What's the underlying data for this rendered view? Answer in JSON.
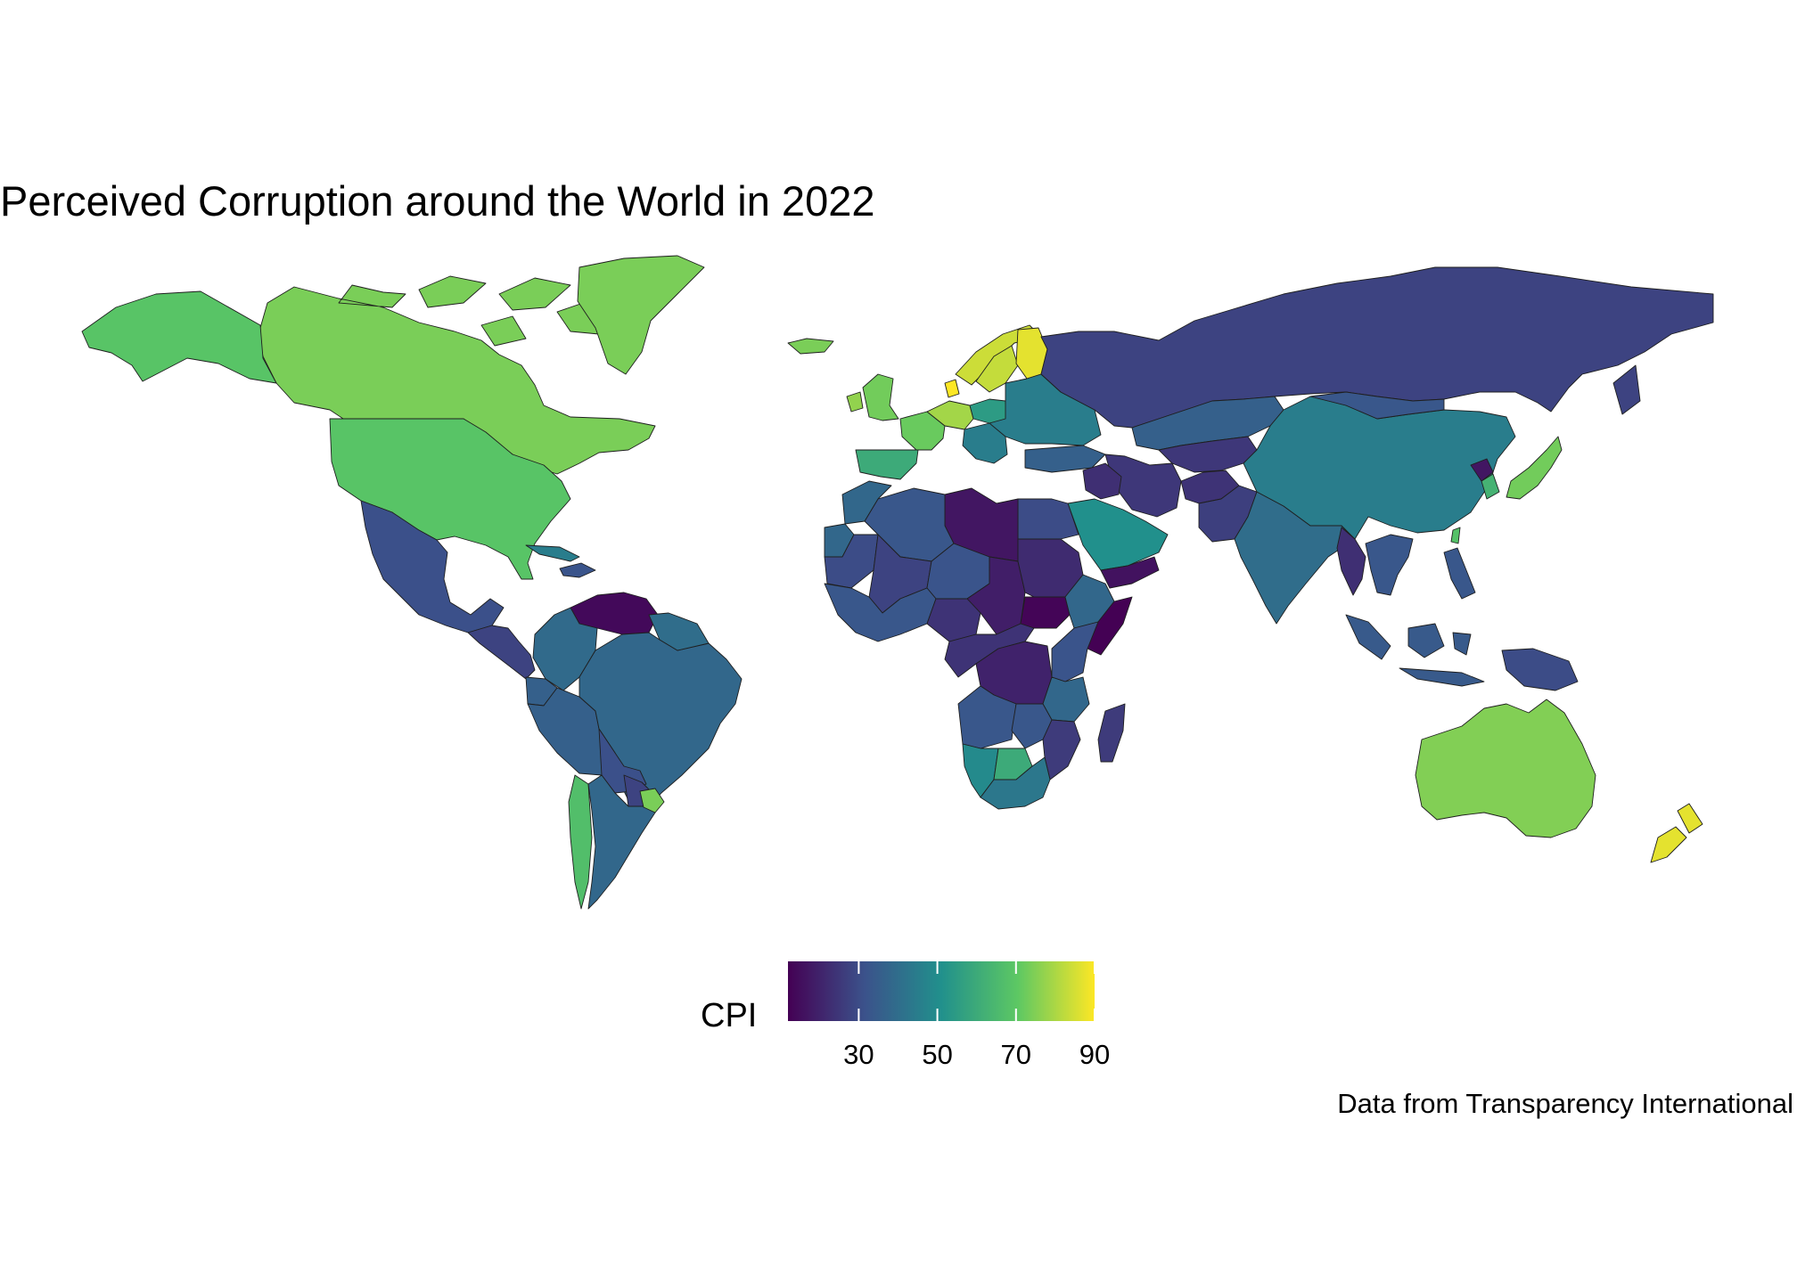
{
  "title": "Perceived Corruption around the World in 2022",
  "caption": "Data from Transparency International",
  "legend": {
    "label": "CPI",
    "min": 12,
    "max": 90,
    "ticks": [
      30,
      50,
      70,
      90
    ],
    "tick_labels": [
      "30",
      "50",
      "70",
      "90"
    ],
    "palette": "viridis",
    "colors": [
      "#440154",
      "#3b528b",
      "#21908c",
      "#5dc863",
      "#fde725"
    ]
  },
  "map_data": {
    "type": "choropleth",
    "variable": "CPI",
    "regions": [
      {
        "name": "Canada",
        "value": 74
      },
      {
        "name": "Greenland",
        "value": 74
      },
      {
        "name": "Alaska",
        "value": 69
      },
      {
        "name": "United States",
        "value": 69
      },
      {
        "name": "Mexico",
        "value": 31
      },
      {
        "name": "Central America",
        "value": 28
      },
      {
        "name": "Cuba",
        "value": 45
      },
      {
        "name": "Hispaniola",
        "value": 32
      },
      {
        "name": "Venezuela",
        "value": 14
      },
      {
        "name": "Colombia",
        "value": 39
      },
      {
        "name": "Ecuador",
        "value": 36
      },
      {
        "name": "Peru",
        "value": 36
      },
      {
        "name": "Brazil",
        "value": 38
      },
      {
        "name": "Guianas",
        "value": 40
      },
      {
        "name": "Bolivia",
        "value": 31
      },
      {
        "name": "Paraguay",
        "value": 28
      },
      {
        "name": "Chile",
        "value": 67
      },
      {
        "name": "Argentina",
        "value": 38
      },
      {
        "name": "Uruguay",
        "value": 74
      },
      {
        "name": "Iceland",
        "value": 74
      },
      {
        "name": "United Kingdom",
        "value": 73
      },
      {
        "name": "Ireland",
        "value": 77
      },
      {
        "name": "Spain",
        "value": 60
      },
      {
        "name": "France",
        "value": 72
      },
      {
        "name": "Germany",
        "value": 79
      },
      {
        "name": "Denmark",
        "value": 90
      },
      {
        "name": "Norway",
        "value": 84
      },
      {
        "name": "Sweden",
        "value": 83
      },
      {
        "name": "Finland",
        "value": 87
      },
      {
        "name": "Poland",
        "value": 55
      },
      {
        "name": "Eastern Europe",
        "value": 45
      },
      {
        "name": "Turkey",
        "value": 36
      },
      {
        "name": "Russia",
        "value": 28
      },
      {
        "name": "Kazakhstan",
        "value": 36
      },
      {
        "name": "Central Asia",
        "value": 25
      },
      {
        "name": "Iran",
        "value": 25
      },
      {
        "name": "Afghanistan",
        "value": 24
      },
      {
        "name": "Pakistan",
        "value": 27
      },
      {
        "name": "India",
        "value": 40
      },
      {
        "name": "China",
        "value": 45
      },
      {
        "name": "Mongolia",
        "value": 33
      },
      {
        "name": "Myanmar",
        "value": 23
      },
      {
        "name": "Southeast Asia",
        "value": 33
      },
      {
        "name": "Japan",
        "value": 73
      },
      {
        "name": "South Korea",
        "value": 63
      },
      {
        "name": "North Korea",
        "value": 17
      },
      {
        "name": "Taiwan",
        "value": 68
      },
      {
        "name": "Indonesia",
        "value": 34
      },
      {
        "name": "Papua New Guinea",
        "value": 30
      },
      {
        "name": "Philippines",
        "value": 33
      },
      {
        "name": "Australia",
        "value": 75
      },
      {
        "name": "New Zealand",
        "value": 87
      },
      {
        "name": "Saudi Arabia",
        "value": 51
      },
      {
        "name": "Iraq",
        "value": 23
      },
      {
        "name": "Yemen",
        "value": 16
      },
      {
        "name": "Egypt",
        "value": 30
      },
      {
        "name": "Libya",
        "value": 17
      },
      {
        "name": "Algeria",
        "value": 33
      },
      {
        "name": "Morocco",
        "value": 38
      },
      {
        "name": "Western Sahara",
        "value": 38
      },
      {
        "name": "Mauritania",
        "value": 30
      },
      {
        "name": "Mali",
        "value": 28
      },
      {
        "name": "Niger",
        "value": 32
      },
      {
        "name": "Chad",
        "value": 19
      },
      {
        "name": "Sudan",
        "value": 22
      },
      {
        "name": "South Sudan",
        "value": 13
      },
      {
        "name": "Ethiopia",
        "value": 38
      },
      {
        "name": "Somalia",
        "value": 12
      },
      {
        "name": "West Africa",
        "value": 33
      },
      {
        "name": "Nigeria",
        "value": 24
      },
      {
        "name": "Central Africa",
        "value": 24
      },
      {
        "name": "DR Congo",
        "value": 20
      },
      {
        "name": "Kenya",
        "value": 32
      },
      {
        "name": "Tanzania",
        "value": 38
      },
      {
        "name": "Angola",
        "value": 33
      },
      {
        "name": "Zambia",
        "value": 33
      },
      {
        "name": "Mozambique",
        "value": 26
      },
      {
        "name": "Namibia",
        "value": 49
      },
      {
        "name": "Botswana",
        "value": 60
      },
      {
        "name": "South Africa",
        "value": 43
      },
      {
        "name": "Madagascar",
        "value": 26
      }
    ]
  }
}
